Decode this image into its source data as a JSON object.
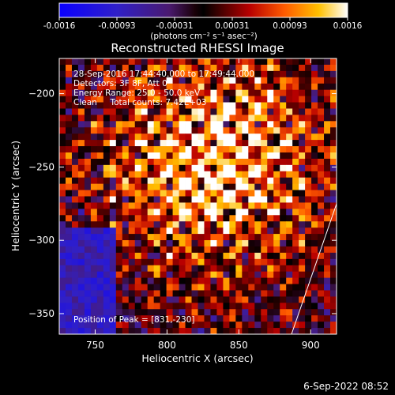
{
  "colorbar": {
    "ticks": [
      "-0.0016",
      "-0.00093",
      "-0.00031",
      "0.00031",
      "0.00093",
      "0.0016"
    ],
    "unit_label": "(photons cm⁻² s⁻¹ asec⁻²)"
  },
  "chart_data": {
    "type": "heatmap",
    "title": "Reconstructed RHESSI Image",
    "xlabel": "Heliocentric X (arcsec)",
    "ylabel": "Heliocentric Y (arcsec)",
    "xlim": [
      725,
      918
    ],
    "ylim": [
      -364,
      -176
    ],
    "x_ticks": [
      750,
      800,
      850,
      900
    ],
    "y_ticks": [
      -200,
      -250,
      -300,
      -350
    ],
    "x_tick_labels": [
      "750",
      "800",
      "850",
      "900"
    ],
    "y_tick_labels": [
      "−200",
      "−250",
      "−300",
      "−350"
    ],
    "color_range": [
      -0.0016,
      0.0016
    ],
    "colormap": "blue-purple-red-orange-yellow-white",
    "annotations": [
      "28-Sep-2016 17:44:40.000 to 17:49:44.000",
      "Detectors: 3F 8F, Att 0",
      "Energy Range: 25.0 - 50.0 keV",
      "Clean     Total counts: 7.42E+03"
    ],
    "peak_label": "Position of Peak = [831,-230]",
    "peak": [
      831,
      -230
    ]
  },
  "footer": {
    "date_stamp": "6-Sep-2022 08:52"
  }
}
